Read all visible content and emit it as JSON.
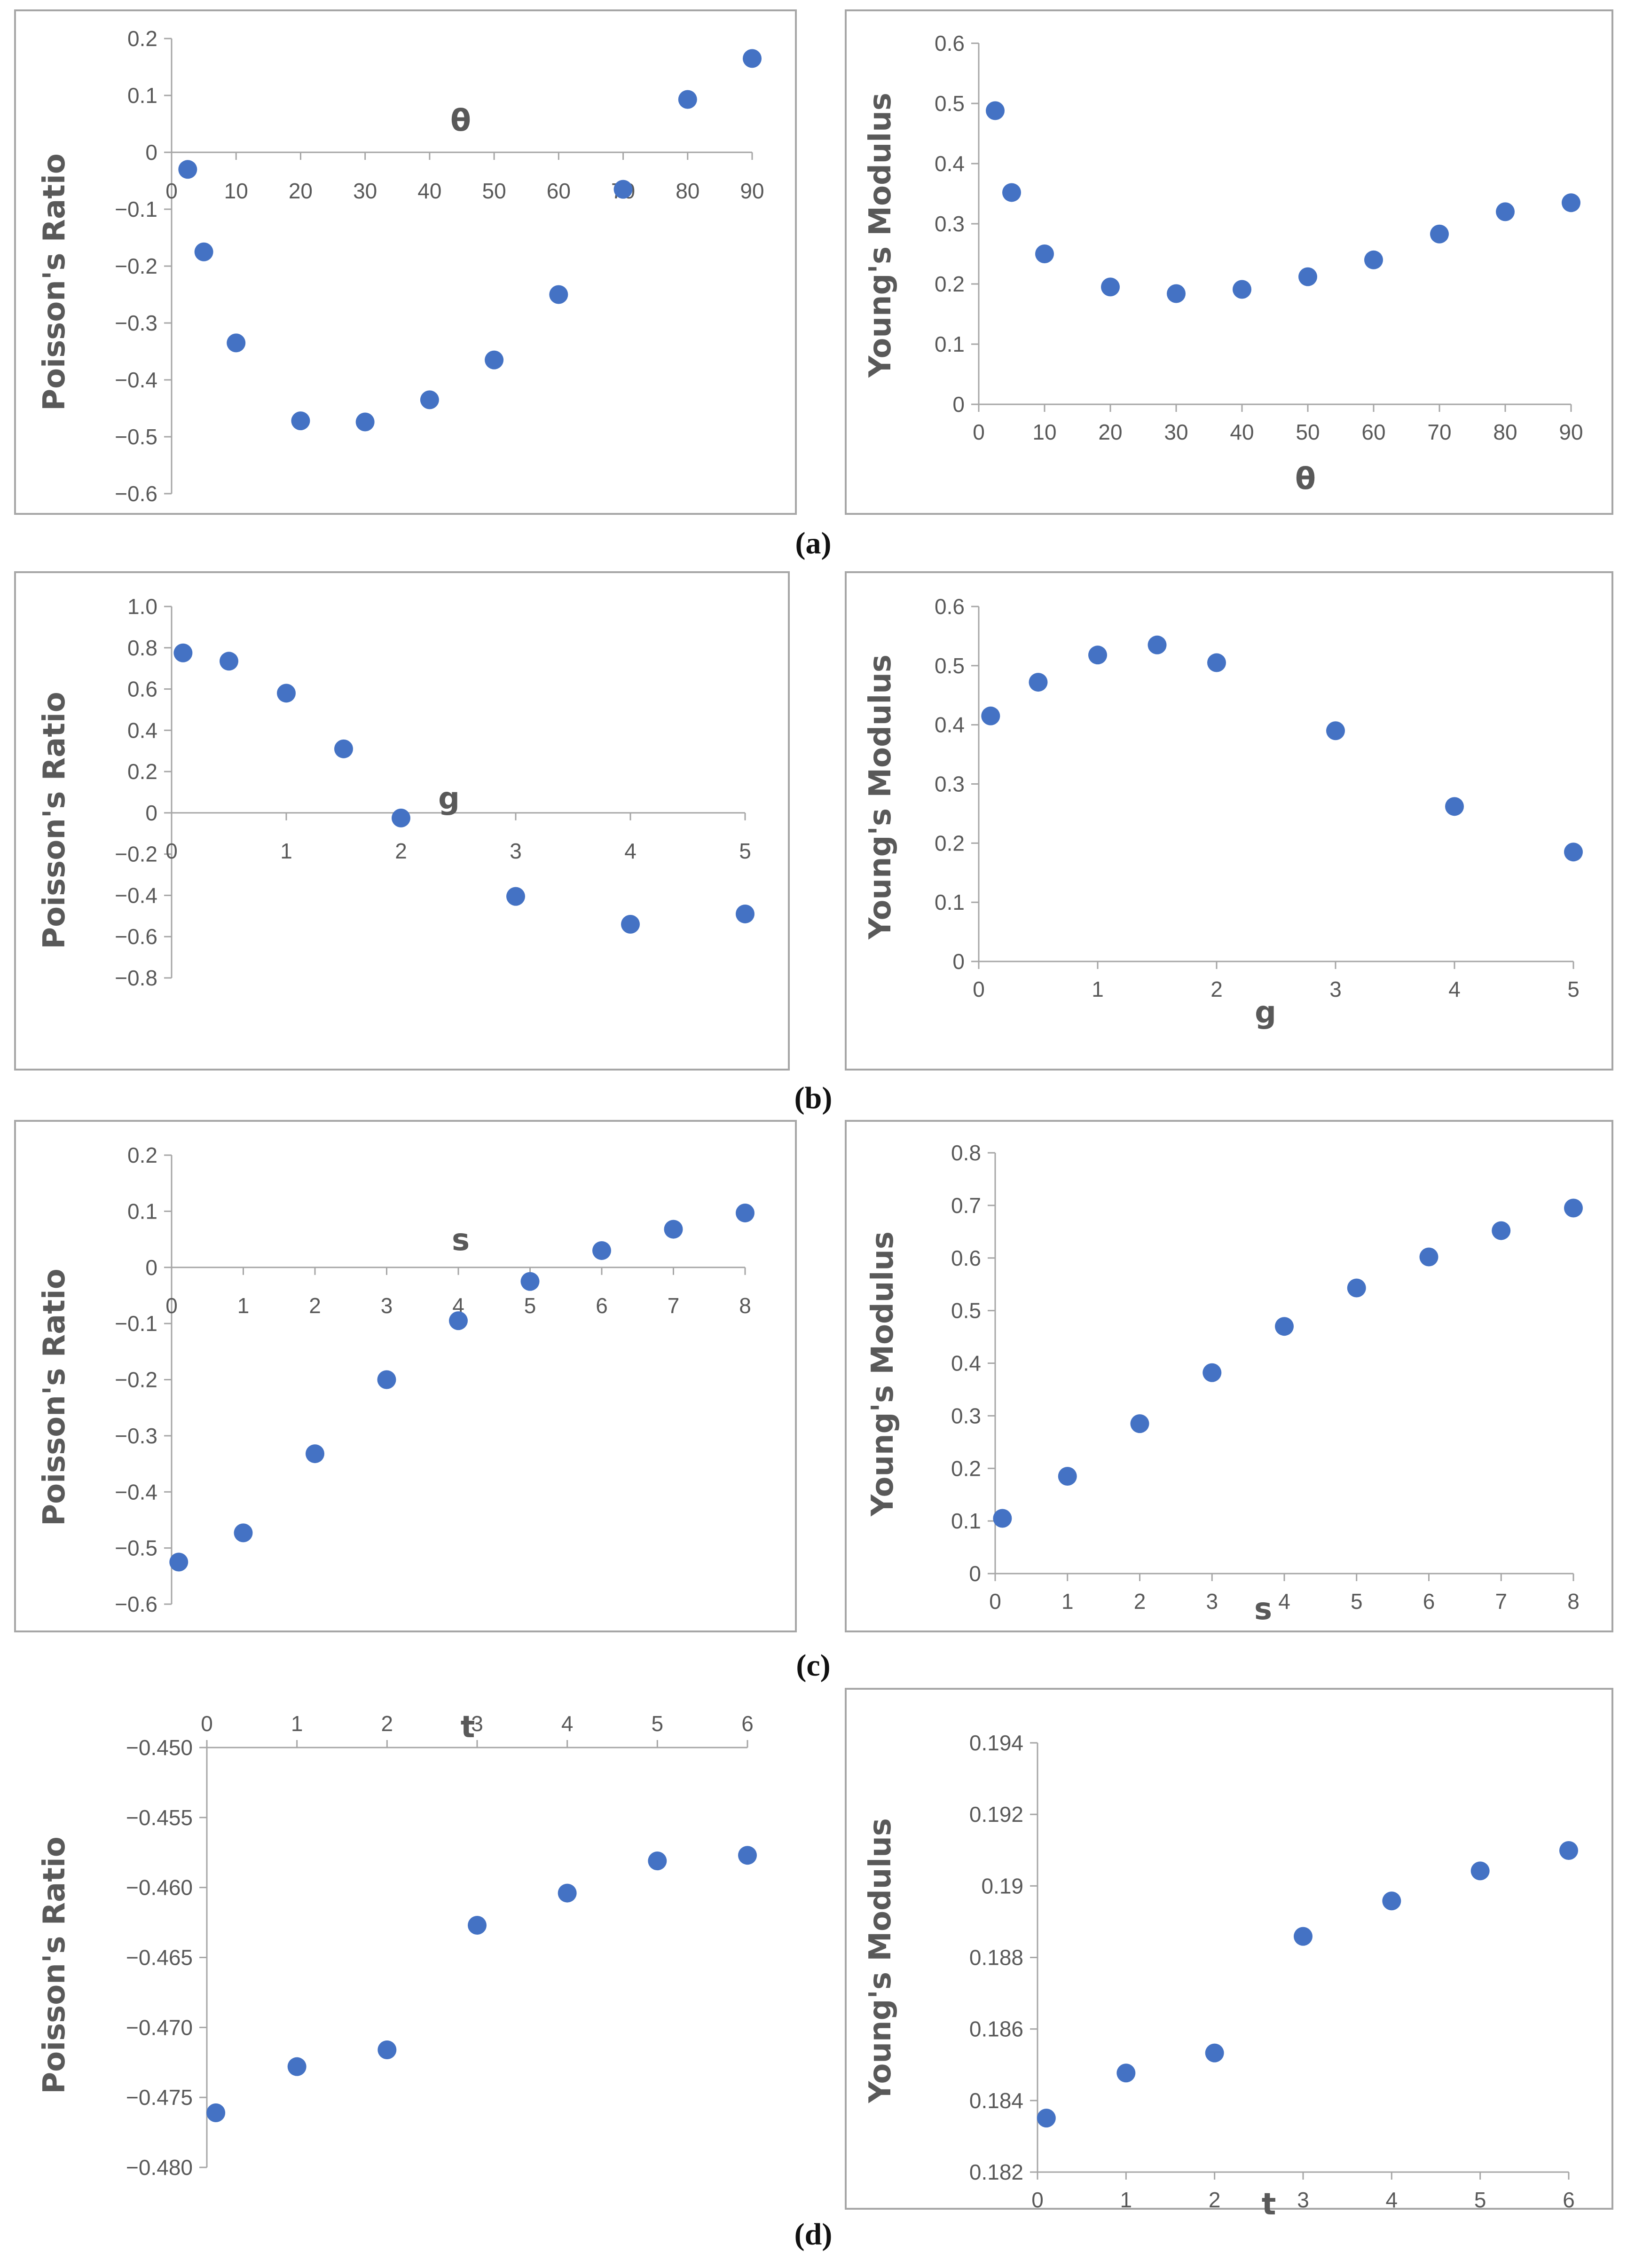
{
  "colors": {
    "marker": "#4472C4",
    "axis": "#A6A6A6",
    "text": "#595959",
    "border": "#A6A6A6"
  },
  "captions": [
    "(a)",
    "(b)",
    "(c)",
    "(d)"
  ],
  "chart_data": [
    {
      "id": "a-left",
      "type": "scatter",
      "xlabel": "θ",
      "ylabel": "Poisson's Ratio",
      "xlim": [
        0,
        90
      ],
      "ylim": [
        -0.6,
        0.2
      ],
      "xticks": [
        "0",
        "10",
        "20",
        "30",
        "40",
        "50",
        "60",
        "70",
        "80",
        "90"
      ],
      "yticks": [
        "0.2",
        "0.1",
        "0",
        "−0.1",
        "−0.2",
        "−0.3",
        "−0.4",
        "−0.5",
        "−0.6"
      ],
      "x": [
        2.5,
        5,
        10,
        20,
        30,
        40,
        50,
        60,
        70,
        80,
        90
      ],
      "y": [
        -0.03,
        -0.175,
        -0.335,
        -0.472,
        -0.474,
        -0.435,
        -0.365,
        -0.25,
        -0.065,
        0.093,
        0.165
      ]
    },
    {
      "id": "a-right",
      "type": "scatter",
      "xlabel": "θ",
      "ylabel": "Young's Modulus",
      "xlim": [
        0,
        90
      ],
      "ylim": [
        0,
        0.6
      ],
      "xticks": [
        "0",
        "10",
        "20",
        "30",
        "40",
        "50",
        "60",
        "70",
        "80",
        "90"
      ],
      "yticks": [
        "0.6",
        "0.5",
        "0.4",
        "0.3",
        "0.2",
        "0.1",
        "0"
      ],
      "x": [
        2.5,
        5,
        10,
        20,
        30,
        40,
        50,
        60,
        70,
        80,
        90
      ],
      "y": [
        0.488,
        0.352,
        0.25,
        0.195,
        0.184,
        0.191,
        0.212,
        0.24,
        0.283,
        0.32,
        0.335
      ]
    },
    {
      "id": "b-left",
      "type": "scatter",
      "xlabel": "g",
      "ylabel": "Poisson's Ratio",
      "xlim": [
        0,
        5
      ],
      "ylim": [
        -0.8,
        1.0
      ],
      "xticks": [
        "0",
        "1",
        "2",
        "3",
        "4",
        "5"
      ],
      "yticks": [
        "1.0",
        "0.8",
        "0.6",
        "0.4",
        "0.2",
        "0",
        "−0.2",
        "−0.4",
        "−0.6",
        "−0.8"
      ],
      "x": [
        0.1,
        0.5,
        1,
        1.5,
        2,
        3,
        4,
        5
      ],
      "y": [
        0.775,
        0.735,
        0.58,
        0.31,
        -0.025,
        -0.405,
        -0.54,
        -0.49
      ]
    },
    {
      "id": "b-right",
      "type": "scatter",
      "xlabel": "g",
      "ylabel": "Young's Modulus",
      "xlim": [
        0,
        5
      ],
      "ylim": [
        0,
        0.6
      ],
      "xticks": [
        "0",
        "1",
        "2",
        "3",
        "4",
        "5"
      ],
      "yticks": [
        "0.6",
        "0.5",
        "0.4",
        "0.3",
        "0.2",
        "0.1",
        "0"
      ],
      "x": [
        0.1,
        0.5,
        1,
        1.5,
        2,
        3,
        4,
        5
      ],
      "y": [
        0.415,
        0.472,
        0.518,
        0.535,
        0.505,
        0.39,
        0.262,
        0.185
      ]
    },
    {
      "id": "c-left",
      "type": "scatter",
      "xlabel": "s",
      "ylabel": "Poisson's Ratio",
      "xlim": [
        0,
        8
      ],
      "ylim": [
        -0.6,
        0.2
      ],
      "xticks": [
        "0",
        "1",
        "2",
        "3",
        "4",
        "5",
        "6",
        "7",
        "8"
      ],
      "yticks": [
        "0.2",
        "0.1",
        "0",
        "−0.1",
        "−0.2",
        "−0.3",
        "−0.4",
        "−0.5",
        "−0.6"
      ],
      "x": [
        0.1,
        1,
        2,
        3,
        4,
        5,
        6,
        7,
        8
      ],
      "y": [
        -0.525,
        -0.473,
        -0.332,
        -0.2,
        -0.095,
        -0.025,
        0.03,
        0.068,
        0.097
      ]
    },
    {
      "id": "c-right",
      "type": "scatter",
      "xlabel": "s",
      "ylabel": "Young's Modulus",
      "xlim": [
        0,
        8
      ],
      "ylim": [
        0,
        0.8
      ],
      "xticks": [
        "0",
        "1",
        "2",
        "3",
        "4",
        "5",
        "6",
        "7",
        "8"
      ],
      "yticks": [
        "0.8",
        "0.7",
        "0.6",
        "0.5",
        "0.4",
        "0.3",
        "0.2",
        "0.1",
        "0"
      ],
      "x": [
        0.1,
        1,
        2,
        3,
        4,
        5,
        6,
        7,
        8
      ],
      "y": [
        0.105,
        0.185,
        0.285,
        0.382,
        0.47,
        0.543,
        0.602,
        0.652,
        0.695
      ]
    },
    {
      "id": "d-left",
      "type": "scatter",
      "xlabel": "t",
      "ylabel": "Poisson's Ratio",
      "xlim": [
        0,
        6
      ],
      "ylim": [
        -0.48,
        -0.45
      ],
      "xticks": [
        "0",
        "1",
        "2",
        "3",
        "4",
        "5",
        "6"
      ],
      "yticks": [
        "−0.450",
        "−0.455",
        "−0.460",
        "−0.465",
        "−0.470",
        "−0.475",
        "−0.480"
      ],
      "x": [
        0.1,
        1,
        2,
        3,
        4,
        5,
        6
      ],
      "y": [
        -0.4761,
        -0.4728,
        -0.4716,
        -0.4627,
        -0.4604,
        -0.4581,
        -0.4577
      ]
    },
    {
      "id": "d-right",
      "type": "scatter",
      "xlabel": "t",
      "ylabel": "Young's Modulus",
      "xlim": [
        0,
        6
      ],
      "ylim": [
        0.182,
        0.194
      ],
      "xticks": [
        "0",
        "1",
        "2",
        "3",
        "4",
        "5",
        "6"
      ],
      "yticks": [
        "0.194",
        "0.192",
        "0.19",
        "0.188",
        "0.186",
        "0.184",
        "0.182"
      ],
      "x": [
        0.1,
        1,
        2,
        3,
        4,
        5,
        6
      ],
      "y": [
        0.18351,
        0.18477,
        0.18533,
        0.18859,
        0.18958,
        0.19042,
        0.19099
      ]
    }
  ]
}
